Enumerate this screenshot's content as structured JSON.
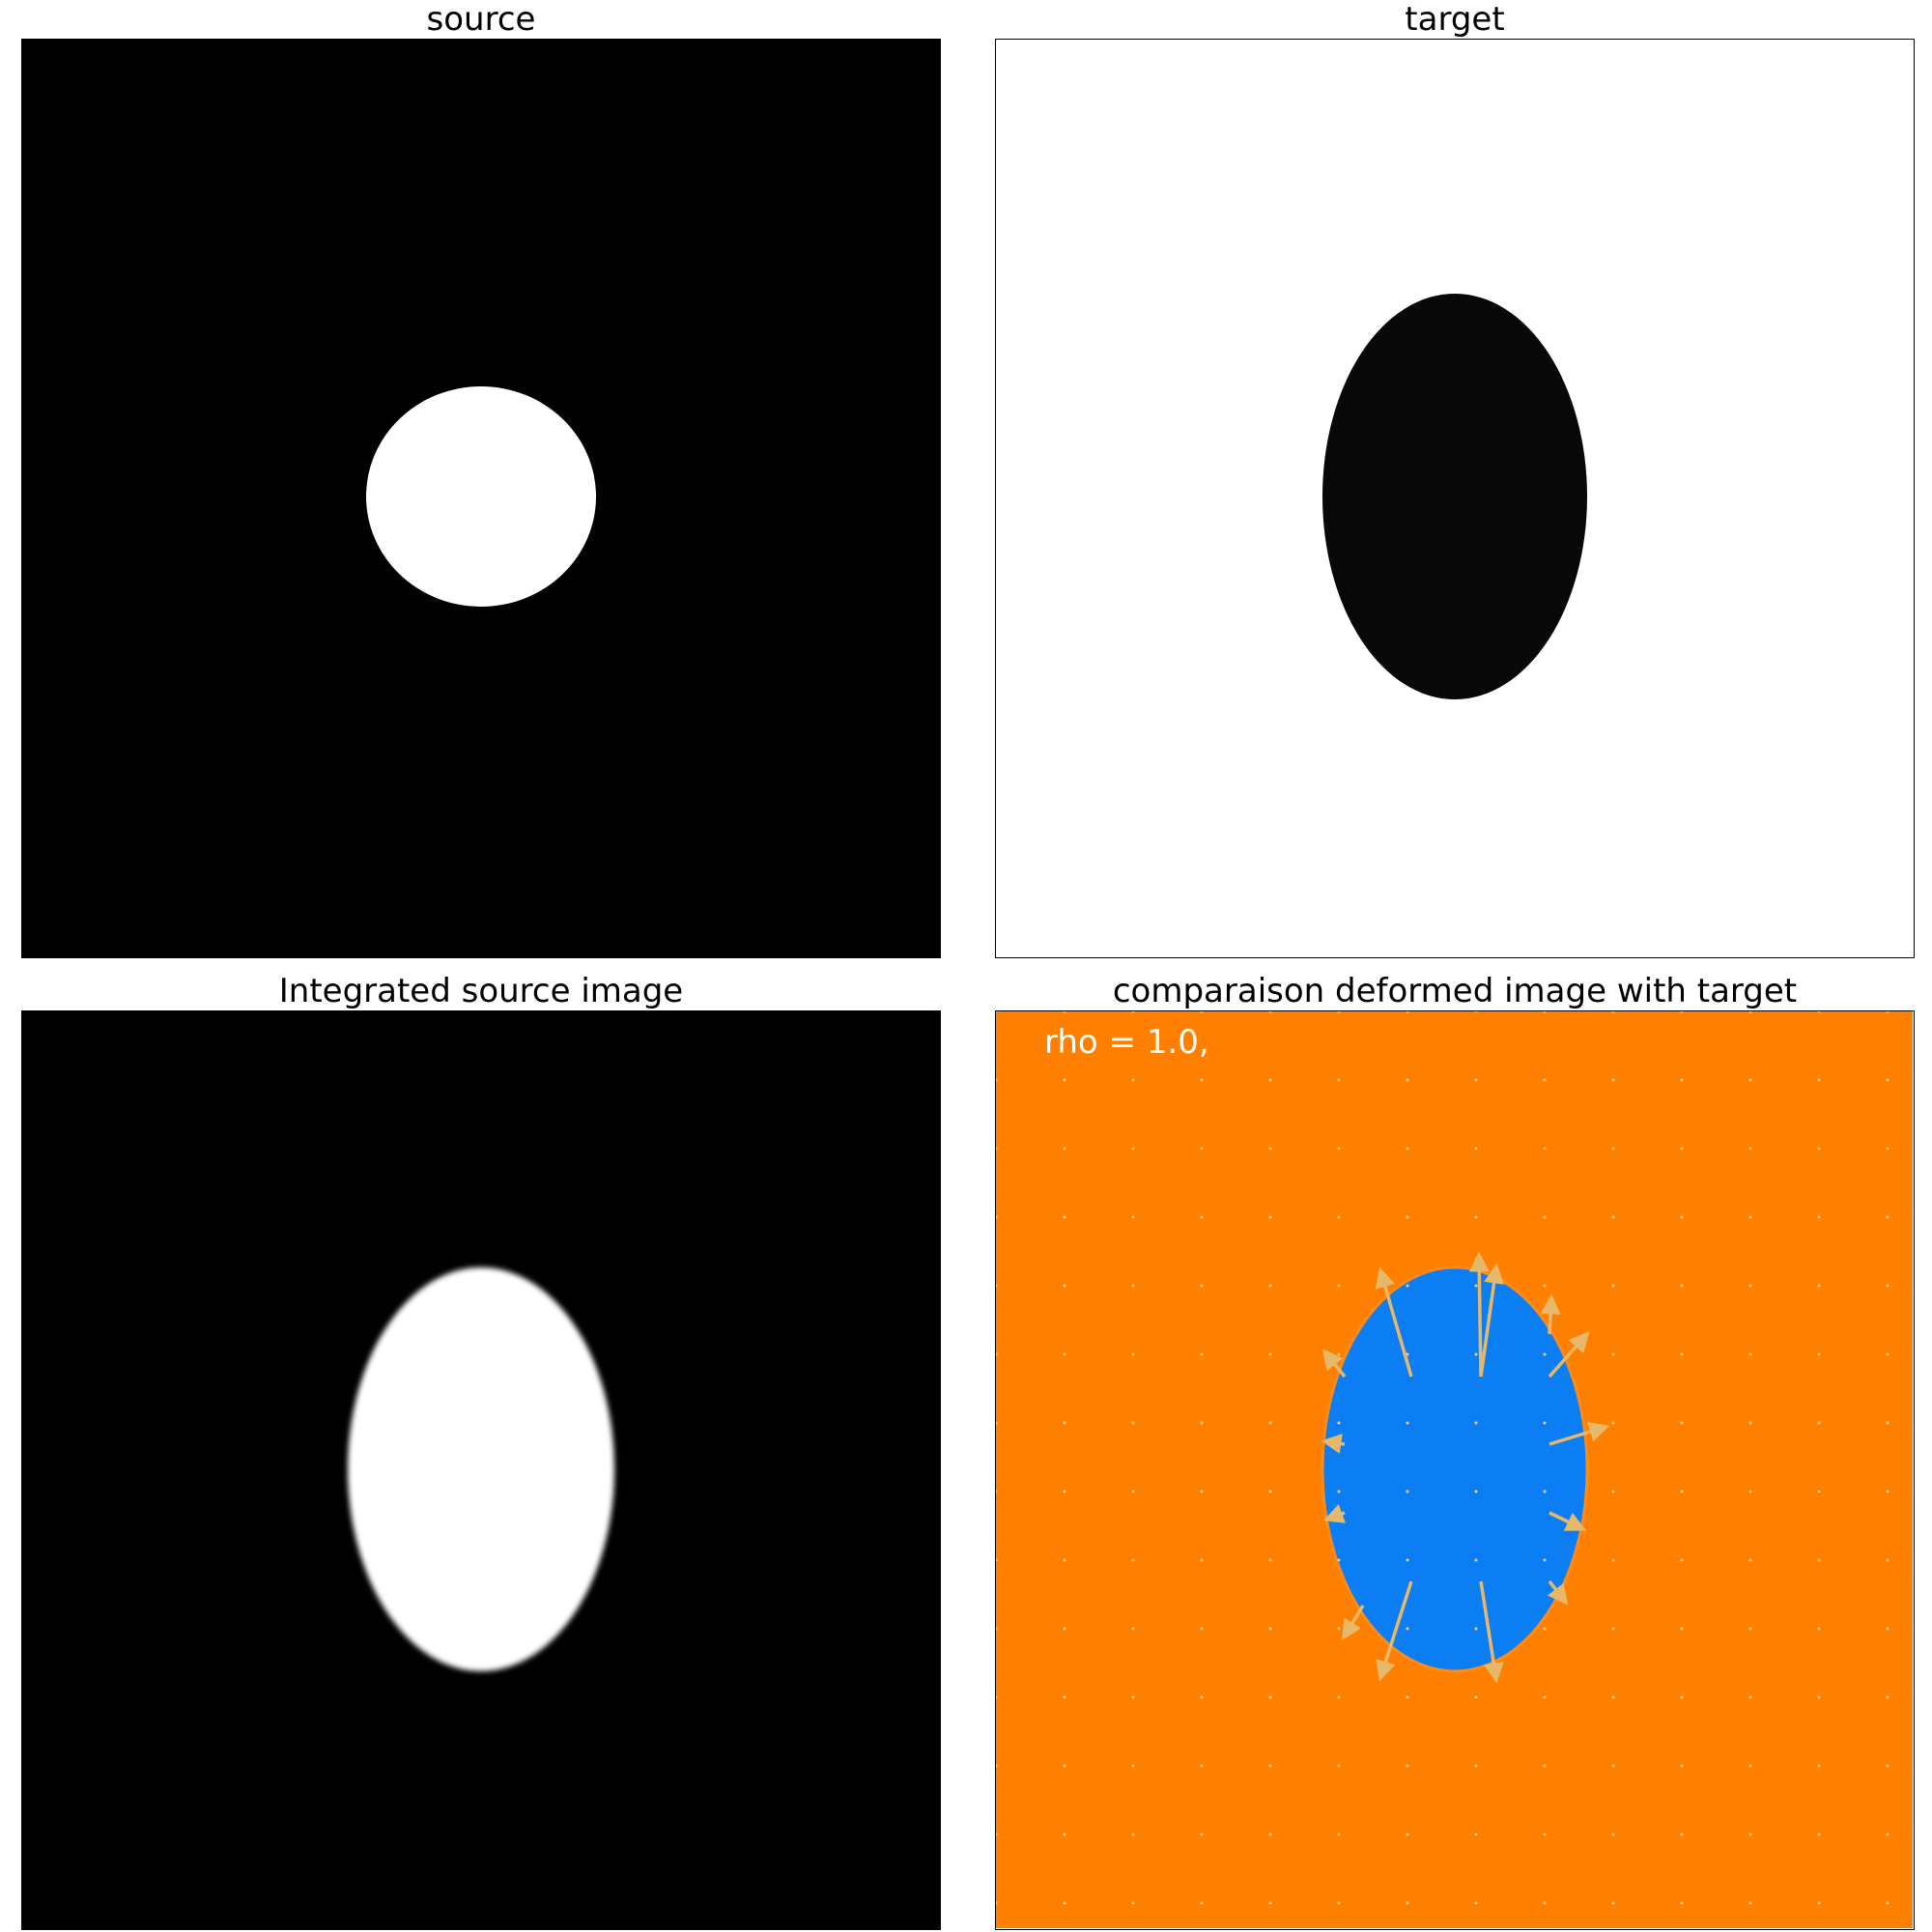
{
  "panels": {
    "source": {
      "title": "source",
      "background": "#000000",
      "shape_color": "#ffffff",
      "shape": "circle"
    },
    "target": {
      "title": "target",
      "background": "#ffffff",
      "shape_color": "#080808",
      "shape": "ellipse"
    },
    "integrated": {
      "title": "Integrated source image",
      "background": "#000000",
      "shape_color": "#ffffff",
      "shape": "blurred-ellipse"
    },
    "comparison": {
      "title": "comparaison deformed image with target",
      "background": "#ff8000",
      "shape_color": "#0a7ef2",
      "arrow_color": "#e8b86a",
      "annotation": "rho = 1.0,"
    }
  }
}
